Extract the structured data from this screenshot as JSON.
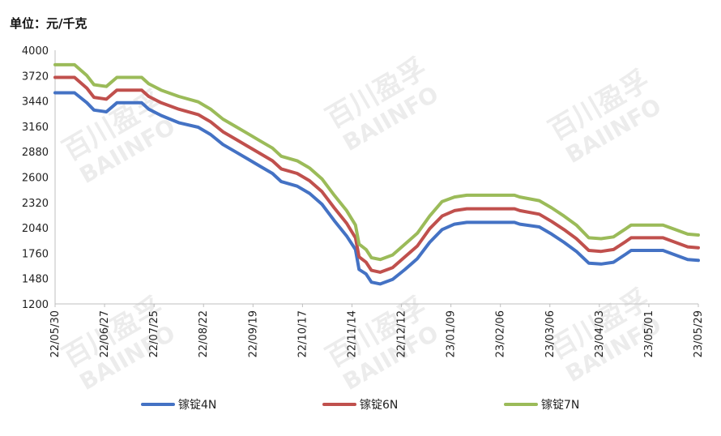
{
  "unit_label": "单位：元/千克",
  "watermark": [
    "百川盈孚",
    "BAIINFO"
  ],
  "chart_data": {
    "type": "line",
    "ylim": [
      1200,
      4000
    ],
    "yticks": [
      1200,
      1480,
      1760,
      2040,
      2320,
      2600,
      2880,
      3160,
      3440,
      3720,
      4000
    ],
    "xlim": [
      "2022-05-30",
      "2023-05-29"
    ],
    "x_tick_labels": [
      "22/05/30",
      "22/06/27",
      "22/07/25",
      "22/08/22",
      "22/09/19",
      "22/10/17",
      "22/11/14",
      "22/12/12",
      "23/01/09",
      "23/02/06",
      "23/03/06",
      "23/04/03",
      "23/05/01",
      "23/05/29"
    ],
    "legend_position": "bottom",
    "grid": false,
    "series": [
      {
        "name": "镓锭4N",
        "color": "#4472C4",
        "points": [
          [
            "2022-05-30",
            3530
          ],
          [
            "2022-06-10",
            3530
          ],
          [
            "2022-06-17",
            3420
          ],
          [
            "2022-06-21",
            3340
          ],
          [
            "2022-06-28",
            3320
          ],
          [
            "2022-07-04",
            3420
          ],
          [
            "2022-07-18",
            3420
          ],
          [
            "2022-07-22",
            3350
          ],
          [
            "2022-07-29",
            3280
          ],
          [
            "2022-08-08",
            3200
          ],
          [
            "2022-08-19",
            3150
          ],
          [
            "2022-08-26",
            3070
          ],
          [
            "2022-09-02",
            2960
          ],
          [
            "2022-09-09",
            2880
          ],
          [
            "2022-09-16",
            2800
          ],
          [
            "2022-09-23",
            2720
          ],
          [
            "2022-09-30",
            2640
          ],
          [
            "2022-10-05",
            2550
          ],
          [
            "2022-10-14",
            2500
          ],
          [
            "2022-10-21",
            2420
          ],
          [
            "2022-10-28",
            2300
          ],
          [
            "2022-11-04",
            2120
          ],
          [
            "2022-11-11",
            1950
          ],
          [
            "2022-11-16",
            1800
          ],
          [
            "2022-11-18",
            1580
          ],
          [
            "2022-11-22",
            1530
          ],
          [
            "2022-11-25",
            1440
          ],
          [
            "2022-11-30",
            1420
          ],
          [
            "2022-12-07",
            1470
          ],
          [
            "2022-12-14",
            1580
          ],
          [
            "2022-12-21",
            1700
          ],
          [
            "2022-12-28",
            1880
          ],
          [
            "2023-01-04",
            2020
          ],
          [
            "2023-01-11",
            2080
          ],
          [
            "2023-01-18",
            2100
          ],
          [
            "2023-02-14",
            2100
          ],
          [
            "2023-02-17",
            2080
          ],
          [
            "2023-02-28",
            2050
          ],
          [
            "2023-03-07",
            1970
          ],
          [
            "2023-03-14",
            1880
          ],
          [
            "2023-03-21",
            1780
          ],
          [
            "2023-03-28",
            1650
          ],
          [
            "2023-04-04",
            1640
          ],
          [
            "2023-04-11",
            1660
          ],
          [
            "2023-04-18",
            1750
          ],
          [
            "2023-04-21",
            1790
          ],
          [
            "2023-05-09",
            1790
          ],
          [
            "2023-05-16",
            1740
          ],
          [
            "2023-05-23",
            1690
          ],
          [
            "2023-05-29",
            1680
          ]
        ]
      },
      {
        "name": "镓锭6N",
        "color": "#C0504D",
        "points": [
          [
            "2022-05-30",
            3700
          ],
          [
            "2022-06-10",
            3700
          ],
          [
            "2022-06-17",
            3580
          ],
          [
            "2022-06-21",
            3480
          ],
          [
            "2022-06-28",
            3460
          ],
          [
            "2022-07-04",
            3560
          ],
          [
            "2022-07-18",
            3560
          ],
          [
            "2022-07-22",
            3490
          ],
          [
            "2022-07-29",
            3420
          ],
          [
            "2022-08-08",
            3350
          ],
          [
            "2022-08-19",
            3290
          ],
          [
            "2022-08-26",
            3210
          ],
          [
            "2022-09-02",
            3100
          ],
          [
            "2022-09-09",
            3020
          ],
          [
            "2022-09-16",
            2940
          ],
          [
            "2022-09-23",
            2860
          ],
          [
            "2022-09-30",
            2780
          ],
          [
            "2022-10-05",
            2690
          ],
          [
            "2022-10-14",
            2640
          ],
          [
            "2022-10-21",
            2560
          ],
          [
            "2022-10-28",
            2440
          ],
          [
            "2022-11-04",
            2260
          ],
          [
            "2022-11-11",
            2090
          ],
          [
            "2022-11-16",
            1930
          ],
          [
            "2022-11-18",
            1720
          ],
          [
            "2022-11-22",
            1660
          ],
          [
            "2022-11-25",
            1570
          ],
          [
            "2022-11-30",
            1550
          ],
          [
            "2022-12-07",
            1600
          ],
          [
            "2022-12-14",
            1720
          ],
          [
            "2022-12-21",
            1840
          ],
          [
            "2022-12-28",
            2030
          ],
          [
            "2023-01-04",
            2170
          ],
          [
            "2023-01-11",
            2230
          ],
          [
            "2023-01-18",
            2250
          ],
          [
            "2023-02-14",
            2250
          ],
          [
            "2023-02-17",
            2230
          ],
          [
            "2023-02-28",
            2190
          ],
          [
            "2023-03-07",
            2110
          ],
          [
            "2023-03-14",
            2020
          ],
          [
            "2023-03-21",
            1920
          ],
          [
            "2023-03-28",
            1790
          ],
          [
            "2023-04-04",
            1780
          ],
          [
            "2023-04-11",
            1800
          ],
          [
            "2023-04-18",
            1890
          ],
          [
            "2023-04-21",
            1930
          ],
          [
            "2023-05-09",
            1930
          ],
          [
            "2023-05-16",
            1880
          ],
          [
            "2023-05-23",
            1830
          ],
          [
            "2023-05-29",
            1820
          ]
        ]
      },
      {
        "name": "镓锭7N",
        "color": "#9BBB59",
        "points": [
          [
            "2022-05-30",
            3840
          ],
          [
            "2022-06-10",
            3840
          ],
          [
            "2022-06-17",
            3720
          ],
          [
            "2022-06-21",
            3620
          ],
          [
            "2022-06-28",
            3600
          ],
          [
            "2022-07-04",
            3700
          ],
          [
            "2022-07-18",
            3700
          ],
          [
            "2022-07-22",
            3630
          ],
          [
            "2022-07-29",
            3560
          ],
          [
            "2022-08-08",
            3490
          ],
          [
            "2022-08-19",
            3430
          ],
          [
            "2022-08-26",
            3350
          ],
          [
            "2022-09-02",
            3240
          ],
          [
            "2022-09-09",
            3160
          ],
          [
            "2022-09-16",
            3080
          ],
          [
            "2022-09-23",
            3000
          ],
          [
            "2022-09-30",
            2920
          ],
          [
            "2022-10-05",
            2830
          ],
          [
            "2022-10-14",
            2780
          ],
          [
            "2022-10-21",
            2700
          ],
          [
            "2022-10-28",
            2580
          ],
          [
            "2022-11-04",
            2400
          ],
          [
            "2022-11-11",
            2230
          ],
          [
            "2022-11-16",
            2070
          ],
          [
            "2022-11-18",
            1860
          ],
          [
            "2022-11-22",
            1800
          ],
          [
            "2022-11-25",
            1710
          ],
          [
            "2022-11-30",
            1690
          ],
          [
            "2022-12-07",
            1740
          ],
          [
            "2022-12-14",
            1860
          ],
          [
            "2022-12-21",
            1980
          ],
          [
            "2022-12-28",
            2170
          ],
          [
            "2023-01-04",
            2330
          ],
          [
            "2023-01-11",
            2380
          ],
          [
            "2023-01-18",
            2400
          ],
          [
            "2023-02-14",
            2400
          ],
          [
            "2023-02-17",
            2380
          ],
          [
            "2023-02-28",
            2340
          ],
          [
            "2023-03-07",
            2260
          ],
          [
            "2023-03-14",
            2170
          ],
          [
            "2023-03-21",
            2070
          ],
          [
            "2023-03-28",
            1930
          ],
          [
            "2023-04-04",
            1920
          ],
          [
            "2023-04-11",
            1940
          ],
          [
            "2023-04-18",
            2030
          ],
          [
            "2023-04-21",
            2070
          ],
          [
            "2023-05-09",
            2070
          ],
          [
            "2023-05-16",
            2020
          ],
          [
            "2023-05-23",
            1970
          ],
          [
            "2023-05-29",
            1960
          ]
        ]
      }
    ]
  }
}
